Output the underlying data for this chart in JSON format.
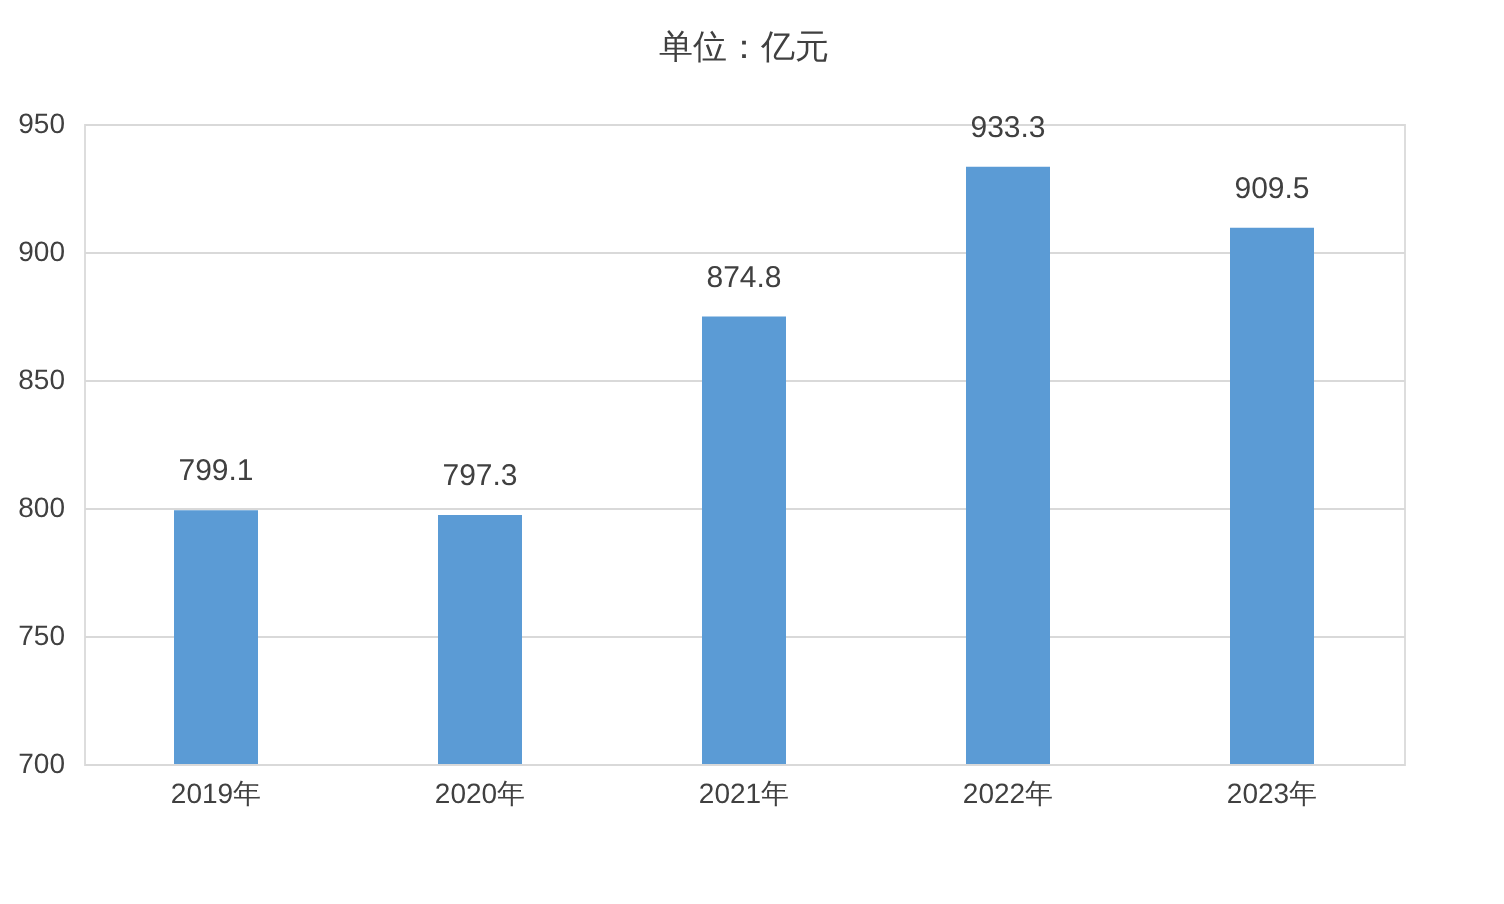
{
  "chart_data": {
    "type": "bar",
    "title": "单位：亿元",
    "categories": [
      "2019年",
      "2020年",
      "2021年",
      "2022年",
      "2023年"
    ],
    "series": [
      {
        "color": "#5b9bd5",
        "values": [
          799.1,
          797.3,
          874.8,
          933.3,
          909.5
        ]
      }
    ],
    "ylim": [
      700,
      950
    ],
    "yticks": [
      700,
      750,
      800,
      850,
      900,
      950
    ],
    "grid": "y",
    "data_labels": true
  }
}
